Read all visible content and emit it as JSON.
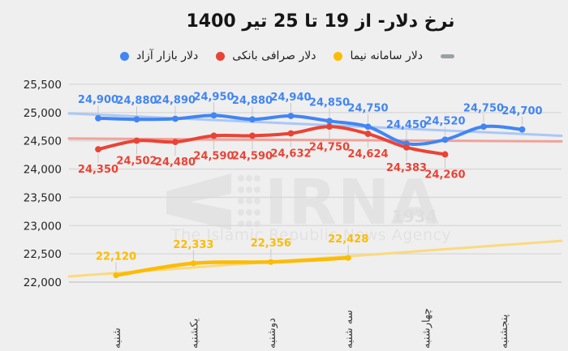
{
  "title": "نرخ دلار- از 19 تا 25 تیر 1400",
  "legend": [
    {
      "label": "دلار بازار آزاد",
      "marker": "circle",
      "color": "#4285f4"
    },
    {
      "label": "دلار صرافی بانکی",
      "marker": "circle",
      "color": "#ea4335"
    },
    {
      "label": "دلار سامانه نیما",
      "marker": "circle",
      "color": "#fbbc05"
    },
    {
      "label": "",
      "marker": "dash",
      "color": "#9aa0a6"
    }
  ],
  "watermark": {
    "name": "IRNA",
    "year": "1934",
    "tagline": "The Islamic Republic News Agency"
  },
  "chart_data": {
    "type": "line",
    "title": "نرخ دلار- از 19 تا 25 تیر 1400",
    "x_categories": [
      "شنبه",
      "یکشنبه",
      "دوشنبه",
      "سه شنبه",
      "چهارشنبه",
      "پنجشنبه"
    ],
    "y_ticks": [
      25500,
      25000,
      24500,
      24000,
      23500,
      23000,
      22500,
      22000
    ],
    "ylim": [
      22000,
      25500
    ],
    "grid": true,
    "legend_position": "top",
    "series": [
      {
        "name": "دلار بازار آزاد",
        "color": "#4285f4",
        "trend_color": "#abc7f6",
        "label_side": "above",
        "values": [
          24900,
          24880,
          24890,
          24950,
          24880,
          24940,
          24850,
          24750,
          24450,
          24520,
          24750,
          24700
        ],
        "trend": [
          24985,
          24590
        ]
      },
      {
        "name": "دلار صرافی بانکی",
        "color": "#ea4335",
        "trend_color": "#efa29a",
        "label_side": "below",
        "values": [
          24350,
          24502,
          24480,
          24590,
          24590,
          24632,
          24750,
          24624,
          24383,
          24260
        ],
        "trend": [
          24540,
          24490
        ]
      },
      {
        "name": "دلار سامانه نیما",
        "color": "#fbbc05",
        "trend_color": "#fbd97e",
        "label_side": "above",
        "values": [
          22120,
          22333,
          22356,
          22428
        ],
        "trend": [
          22100,
          22730
        ]
      }
    ]
  }
}
